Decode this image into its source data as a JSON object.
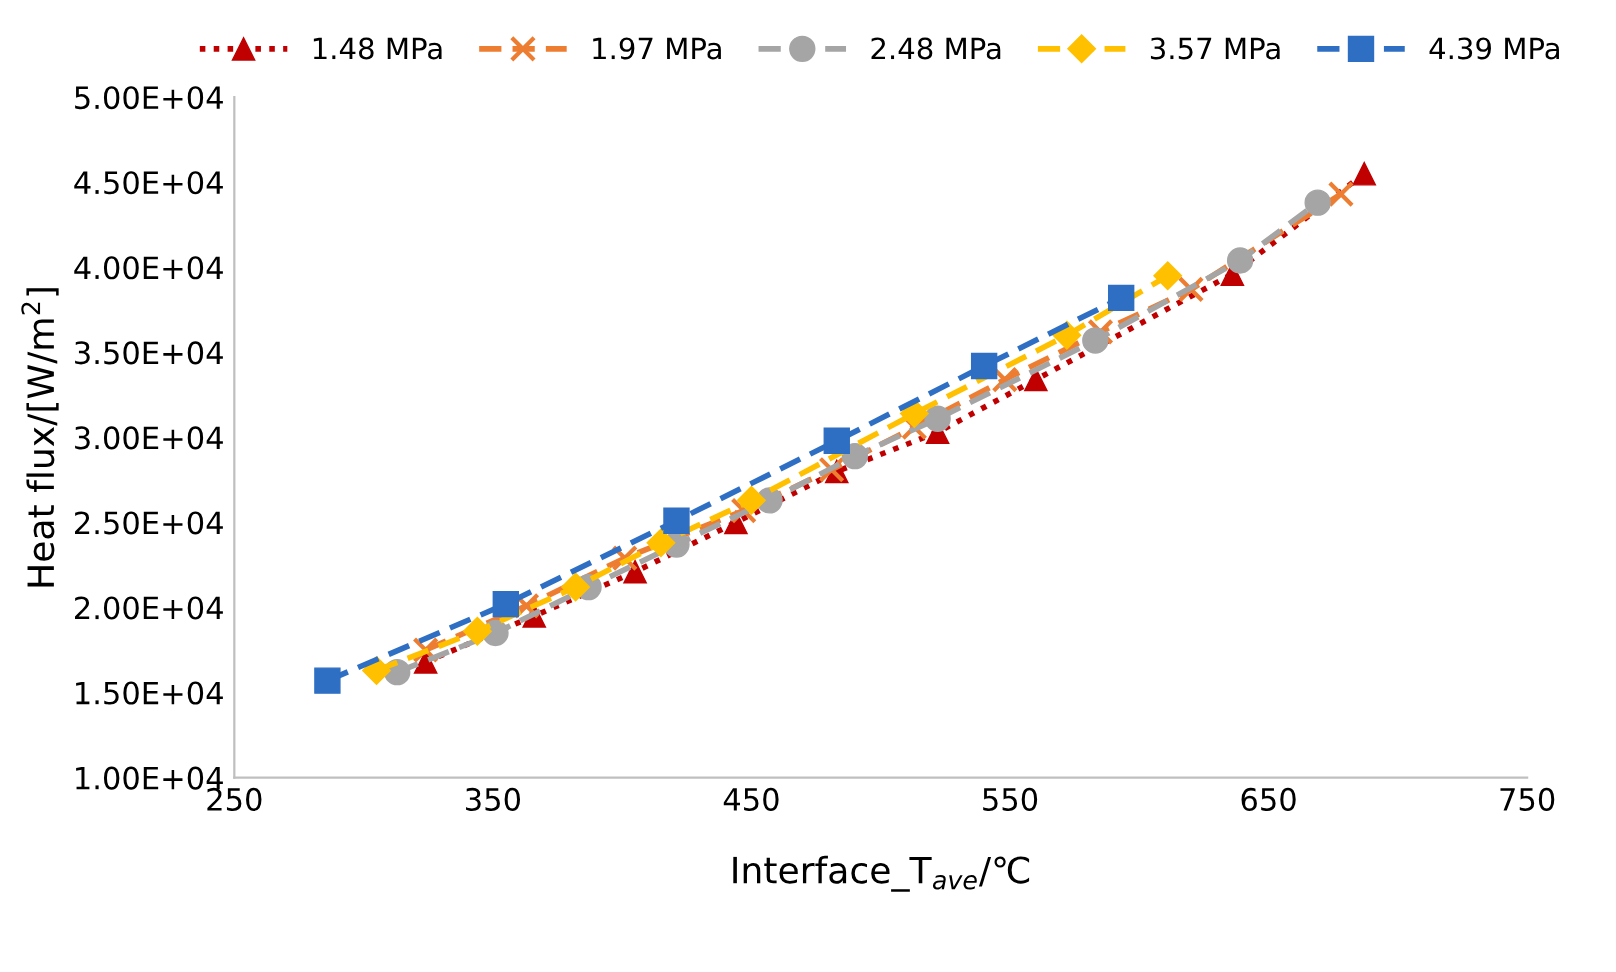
{
  "chart_data": {
    "type": "line",
    "xlabel": "Interface_T$_{ave}$/℃",
    "ylabel": "Heat flux/[W/m$^{2}$]",
    "xlim": [
      250,
      750
    ],
    "xticks": [
      250,
      350,
      450,
      550,
      650,
      750
    ],
    "ylim": [
      10000,
      50000
    ],
    "yticks": [
      {
        "value": 10000,
        "label": "1.00E+04"
      },
      {
        "value": 15000,
        "label": "1.50E+04"
      },
      {
        "value": 20000,
        "label": "2.00E+04"
      },
      {
        "value": 25000,
        "label": "2.50E+04"
      },
      {
        "value": 30000,
        "label": "3.00E+04"
      },
      {
        "value": 35000,
        "label": "3.50E+04"
      },
      {
        "value": 40000,
        "label": "4.00E+04"
      },
      {
        "value": 45000,
        "label": "4.50E+04"
      },
      {
        "value": 50000,
        "label": "5.00E+04"
      }
    ],
    "grid": false,
    "legend": "top",
    "series": [
      {
        "name": "1.48 MPa",
        "color": "#c00000",
        "marker": "triangle",
        "line_style": "dotted",
        "x": [
          324,
          366,
          405,
          444,
          483,
          522,
          560,
          636,
          687
        ],
        "values": [
          16800,
          19500,
          22100,
          25000,
          28000,
          30300,
          33400,
          39600,
          45500
        ]
      },
      {
        "name": "1.97 MPa",
        "color": "#ed7d31",
        "marker": "cross",
        "line_style": "dashed",
        "x": [
          324,
          363,
          401,
          447,
          481,
          513,
          548,
          585,
          620,
          678
        ],
        "values": [
          17500,
          20100,
          22900,
          25700,
          28100,
          30600,
          33400,
          36200,
          38700,
          44300
        ]
      },
      {
        "name": "2.48 MPa",
        "color": "#a5a5a5",
        "marker": "circle",
        "line_style": "dashed",
        "x": [
          313,
          351,
          387,
          421,
          457,
          490,
          522,
          583,
          639,
          669
        ],
        "values": [
          16200,
          18500,
          21200,
          23700,
          26300,
          28900,
          31100,
          35700,
          40400,
          43800
        ]
      },
      {
        "name": "3.57 MPa",
        "color": "#ffc000",
        "marker": "diamond",
        "line_style": "dashed",
        "x": [
          305,
          344,
          382,
          415,
          450,
          513,
          572,
          611
        ],
        "values": [
          16300,
          18600,
          21200,
          23800,
          26300,
          31400,
          36000,
          39500
        ]
      },
      {
        "name": "4.39 MPa",
        "color": "#2e6fc4",
        "marker": "square",
        "line_style": "dashed",
        "x": [
          286,
          355,
          421,
          483,
          540,
          593
        ],
        "values": [
          15700,
          20200,
          25100,
          29800,
          34200,
          38200
        ]
      }
    ]
  }
}
